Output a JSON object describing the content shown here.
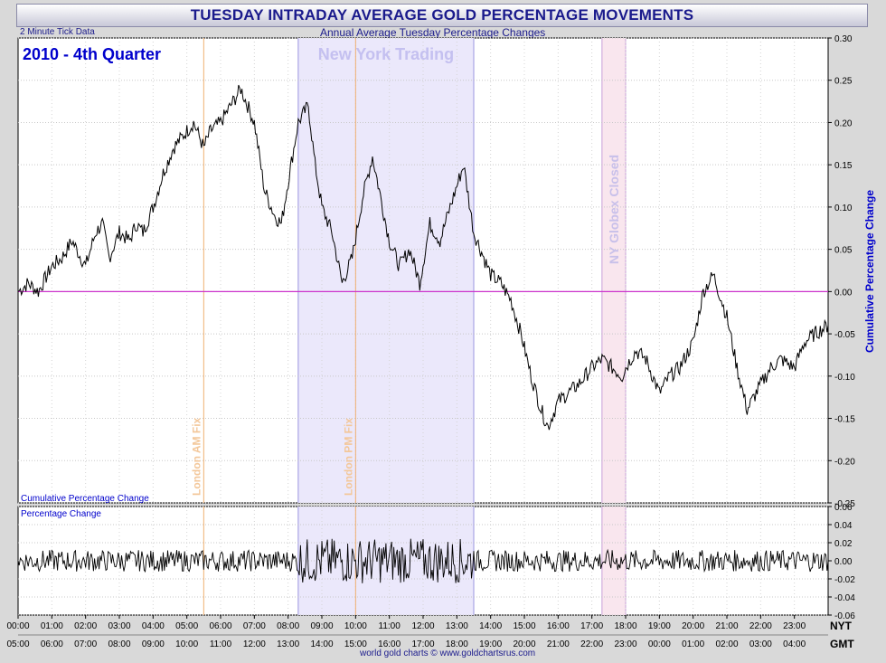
{
  "title": "TUESDAY INTRADAY AVERAGE GOLD PERCENTAGE MOVEMENTS",
  "subtitle": "Annual Average Tuesday Percentage Changes",
  "tick_note": "2 Minute Tick Data",
  "period_label": "2010 - 4th Quarter",
  "credit": "world gold charts © www.goldchartsrus.com",
  "colors": {
    "title": "#1a1a8c",
    "ny_band": "#ebe8fb",
    "globex_band": "#f9e6ee",
    "fix_line": "#f0b070",
    "zero_line": "#cc33cc"
  },
  "chart_data": [
    {
      "type": "line",
      "name": "cumulative",
      "panel_label": "Cumulative Percentage Change",
      "ylabel": "Cumulative Percentage Change",
      "ylim": [
        -0.25,
        0.3
      ],
      "yticks": [
        "0.30",
        "0.25",
        "0.20",
        "0.15",
        "0.10",
        "0.05",
        "0.00",
        "-0.05",
        "-0.10",
        "-0.15",
        "-0.20",
        "-0.25"
      ],
      "xlim": [
        0,
        24
      ],
      "x": [
        0,
        0.3,
        0.6,
        1,
        1.3,
        1.6,
        2,
        2.3,
        2.5,
        2.7,
        3,
        3.3,
        3.5,
        3.7,
        4,
        4.3,
        4.6,
        5,
        5.2,
        5.5,
        5.7,
        6,
        6.3,
        6.6,
        7,
        7.3,
        7.6,
        7.8,
        8,
        8.3,
        8.6,
        8.8,
        9,
        9.3,
        9.6,
        9.9,
        10.2,
        10.5,
        10.7,
        11,
        11.3,
        11.6,
        11.9,
        12.2,
        12.5,
        12.8,
        13.2,
        13.5,
        13.8,
        14,
        14.3,
        14.6,
        14.9,
        15.2,
        15.5,
        15.7,
        16,
        16.3,
        16.6,
        17,
        17.3,
        17.6,
        17.9,
        18,
        18.3,
        18.6,
        19,
        19.3,
        19.6,
        20,
        20.3,
        20.6,
        21,
        21.3,
        21.6,
        22,
        22.3,
        22.6,
        23,
        23.3,
        23.6,
        24
      ],
      "values": [
        0.0,
        0.01,
        0.0,
        0.03,
        0.04,
        0.06,
        0.03,
        0.07,
        0.08,
        0.04,
        0.07,
        0.06,
        0.08,
        0.07,
        0.1,
        0.14,
        0.17,
        0.19,
        0.2,
        0.17,
        0.19,
        0.2,
        0.22,
        0.24,
        0.2,
        0.12,
        0.09,
        0.08,
        0.13,
        0.2,
        0.22,
        0.15,
        0.1,
        0.07,
        0.01,
        0.04,
        0.11,
        0.16,
        0.12,
        0.06,
        0.03,
        0.05,
        0.01,
        0.08,
        0.06,
        0.1,
        0.15,
        0.07,
        0.04,
        0.02,
        0.01,
        -0.01,
        -0.05,
        -0.1,
        -0.14,
        -0.16,
        -0.13,
        -0.12,
        -0.11,
        -0.09,
        -0.08,
        -0.09,
        -0.1,
        -0.09,
        -0.07,
        -0.08,
        -0.12,
        -0.1,
        -0.09,
        -0.06,
        0.0,
        0.02,
        -0.03,
        -0.09,
        -0.14,
        -0.11,
        -0.09,
        -0.08,
        -0.09,
        -0.06,
        -0.05,
        -0.04
      ]
    },
    {
      "type": "line",
      "name": "percentage",
      "panel_label": "Percentage Change",
      "ylim": [
        -0.06,
        0.06
      ],
      "yticks": [
        "0.06",
        "0.04",
        "0.02",
        "0.00",
        "-0.02",
        "-0.04",
        "-0.06"
      ],
      "amplitude_baseline": 0.012,
      "amplitude_ny": 0.025
    }
  ],
  "x_axis": {
    "nyt_label": "NYT",
    "gmt_label": "GMT",
    "nyt": [
      "00:00",
      "01:00",
      "02:00",
      "03:00",
      "04:00",
      "05:00",
      "06:00",
      "07:00",
      "08:00",
      "09:00",
      "10:00",
      "11:00",
      "12:00",
      "13:00",
      "14:00",
      "15:00",
      "16:00",
      "17:00",
      "18:00",
      "19:00",
      "20:00",
      "21:00",
      "22:00",
      "23:00"
    ],
    "gmt": [
      "05:00",
      "06:00",
      "07:00",
      "08:00",
      "09:00",
      "10:00",
      "11:00",
      "12:00",
      "13:00",
      "14:00",
      "15:00",
      "16:00",
      "17:00",
      "18:00",
      "19:00",
      "20:00",
      "21:00",
      "22:00",
      "23:00",
      "00:00",
      "01:00",
      "02:00",
      "03:00",
      "04:00"
    ]
  },
  "bands": [
    {
      "label": "New York Trading",
      "from": 8.3,
      "to": 13.5
    },
    {
      "label": "NY Globex Closed",
      "from": 17.3,
      "to": 18.0
    }
  ],
  "fix_lines": [
    {
      "label": "London AM Fix",
      "at": 5.5
    },
    {
      "label": "London PM Fix",
      "at": 10.0
    }
  ]
}
